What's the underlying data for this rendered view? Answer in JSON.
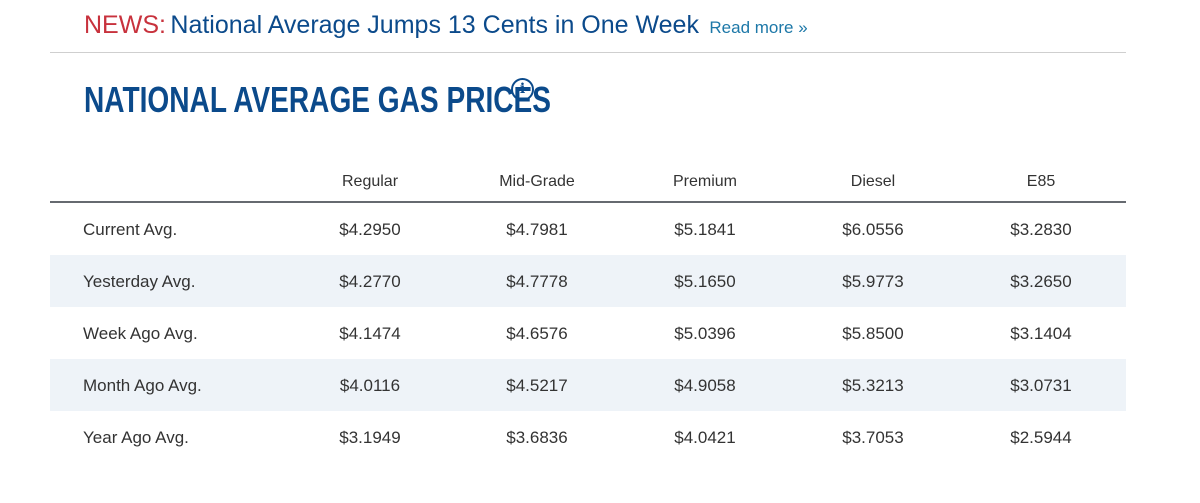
{
  "news": {
    "prefix": "NEWS:",
    "headline": "National Average Jumps 13 Cents in One Week",
    "read_more": "Read more »"
  },
  "section": {
    "title": "NATIONAL AVERAGE GAS PRICES",
    "info_icon": "info-circle-icon",
    "info_glyph": "i"
  },
  "table": {
    "columns": [
      "Regular",
      "Mid-Grade",
      "Premium",
      "Diesel",
      "E85"
    ],
    "rows": [
      {
        "label": "Current Avg.",
        "values": [
          "$4.2950",
          "$4.7981",
          "$5.1841",
          "$6.0556",
          "$3.2830"
        ]
      },
      {
        "label": "Yesterday Avg.",
        "values": [
          "$4.2770",
          "$4.7778",
          "$5.1650",
          "$5.9773",
          "$3.2650"
        ]
      },
      {
        "label": "Week Ago Avg.",
        "values": [
          "$4.1474",
          "$4.6576",
          "$5.0396",
          "$5.8500",
          "$3.1404"
        ]
      },
      {
        "label": "Month Ago Avg.",
        "values": [
          "$4.0116",
          "$4.5217",
          "$4.9058",
          "$5.3213",
          "$3.0731"
        ]
      },
      {
        "label": "Year Ago Avg.",
        "values": [
          "$3.1949",
          "$3.6836",
          "$4.0421",
          "$3.7053",
          "$2.5944"
        ]
      }
    ]
  },
  "colors": {
    "news_red": "#c8323d",
    "brand_blue": "#0b4a8b",
    "link_blue": "#1d78a8",
    "row_shade": "#eef3f8"
  }
}
